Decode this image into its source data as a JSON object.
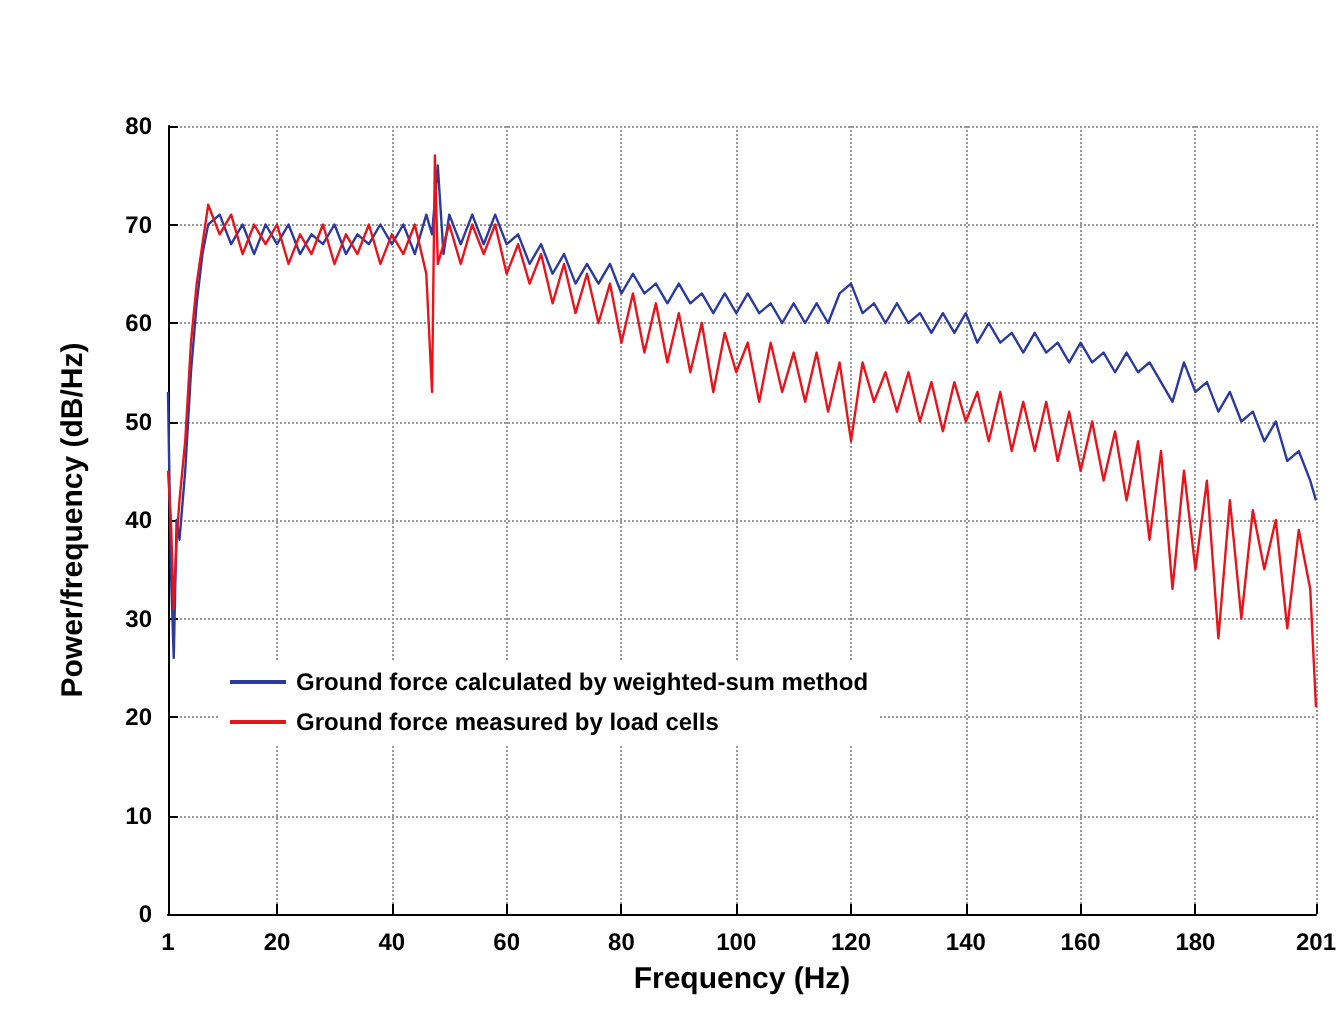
{
  "chart_data": {
    "type": "line",
    "xlabel": "Frequency (Hz)",
    "ylabel": "Power/frequency (dB/Hz)",
    "xlim": [
      1,
      201
    ],
    "xticks": [
      1,
      20,
      40,
      60,
      80,
      100,
      120,
      140,
      160,
      180,
      201
    ],
    "ylim": [
      0,
      80
    ],
    "yticks": [
      0,
      10,
      20,
      30,
      40,
      50,
      60,
      70,
      80
    ],
    "grid": true,
    "legend": "left",
    "marker": "none",
    "line_style": "solid",
    "series": [
      {
        "name": "Ground force calculated by weighted-sum method",
        "color": "#2b3a9e",
        "x": [
          1,
          1.5,
          2,
          2.5,
          3,
          4,
          5,
          6,
          7,
          8,
          10,
          12,
          14,
          16,
          18,
          20,
          22,
          24,
          26,
          28,
          30,
          32,
          34,
          36,
          38,
          40,
          42,
          44,
          46,
          47,
          48,
          49,
          50,
          52,
          54,
          56,
          58,
          60,
          62,
          64,
          66,
          68,
          70,
          72,
          74,
          76,
          78,
          80,
          82,
          84,
          86,
          88,
          90,
          92,
          94,
          96,
          98,
          100,
          102,
          104,
          106,
          108,
          110,
          112,
          114,
          116,
          118,
          120,
          122,
          124,
          126,
          128,
          130,
          132,
          134,
          136,
          138,
          140,
          142,
          144,
          146,
          148,
          150,
          152,
          154,
          156,
          158,
          160,
          162,
          164,
          166,
          168,
          170,
          172,
          174,
          176,
          178,
          180,
          182,
          184,
          186,
          188,
          190,
          192,
          194,
          196,
          198,
          200,
          201
        ],
        "values": [
          53,
          35,
          26,
          40,
          38,
          45,
          55,
          62,
          67,
          70,
          71,
          68,
          70,
          67,
          70,
          68,
          70,
          67,
          69,
          68,
          70,
          67,
          69,
          68,
          70,
          68,
          70,
          67,
          71,
          69,
          76,
          67,
          71,
          68,
          71,
          68,
          71,
          68,
          69,
          66,
          68,
          65,
          67,
          64,
          66,
          64,
          66,
          63,
          65,
          63,
          64,
          62,
          64,
          62,
          63,
          61,
          63,
          61,
          63,
          61,
          62,
          60,
          62,
          60,
          62,
          60,
          63,
          64,
          61,
          62,
          60,
          62,
          60,
          61,
          59,
          61,
          59,
          61,
          58,
          60,
          58,
          59,
          57,
          59,
          57,
          58,
          56,
          58,
          56,
          57,
          55,
          57,
          55,
          56,
          54,
          52,
          56,
          53,
          54,
          51,
          53,
          50,
          51,
          48,
          50,
          46,
          47,
          44,
          42
        ]
      },
      {
        "name": "Ground force measured by load cells",
        "color": "#e8141b",
        "x": [
          1,
          1.5,
          2,
          2.5,
          3,
          4,
          5,
          6,
          7,
          8,
          10,
          12,
          14,
          16,
          18,
          20,
          22,
          24,
          26,
          28,
          30,
          32,
          34,
          36,
          38,
          40,
          42,
          44,
          46,
          47,
          47.5,
          48,
          50,
          52,
          54,
          56,
          58,
          60,
          62,
          64,
          66,
          68,
          70,
          72,
          74,
          76,
          78,
          80,
          82,
          84,
          86,
          88,
          90,
          92,
          94,
          96,
          98,
          100,
          102,
          104,
          106,
          108,
          110,
          112,
          114,
          116,
          118,
          120,
          122,
          124,
          126,
          128,
          130,
          132,
          134,
          136,
          138,
          140,
          142,
          144,
          146,
          148,
          150,
          152,
          154,
          156,
          158,
          160,
          162,
          164,
          166,
          168,
          170,
          172,
          174,
          176,
          178,
          180,
          182,
          184,
          186,
          188,
          190,
          192,
          194,
          196,
          198,
          200,
          201
        ],
        "values": [
          45,
          40,
          31,
          38,
          42,
          48,
          58,
          64,
          68,
          72,
          69,
          71,
          67,
          70,
          68,
          70,
          66,
          69,
          67,
          70,
          66,
          69,
          67,
          70,
          66,
          69,
          67,
          70,
          65,
          53,
          77,
          66,
          70,
          66,
          70,
          67,
          70,
          65,
          68,
          64,
          67,
          62,
          66,
          61,
          65,
          60,
          64,
          58,
          63,
          57,
          62,
          56,
          61,
          55,
          60,
          53,
          59,
          55,
          58,
          52,
          58,
          53,
          57,
          52,
          57,
          51,
          56,
          48,
          56,
          52,
          55,
          51,
          55,
          50,
          54,
          49,
          54,
          50,
          53,
          48,
          53,
          47,
          52,
          47,
          52,
          46,
          51,
          45,
          50,
          44,
          49,
          42,
          48,
          38,
          47,
          33,
          45,
          35,
          44,
          28,
          42,
          30,
          41,
          35,
          40,
          29,
          39,
          33,
          21
        ]
      }
    ]
  }
}
